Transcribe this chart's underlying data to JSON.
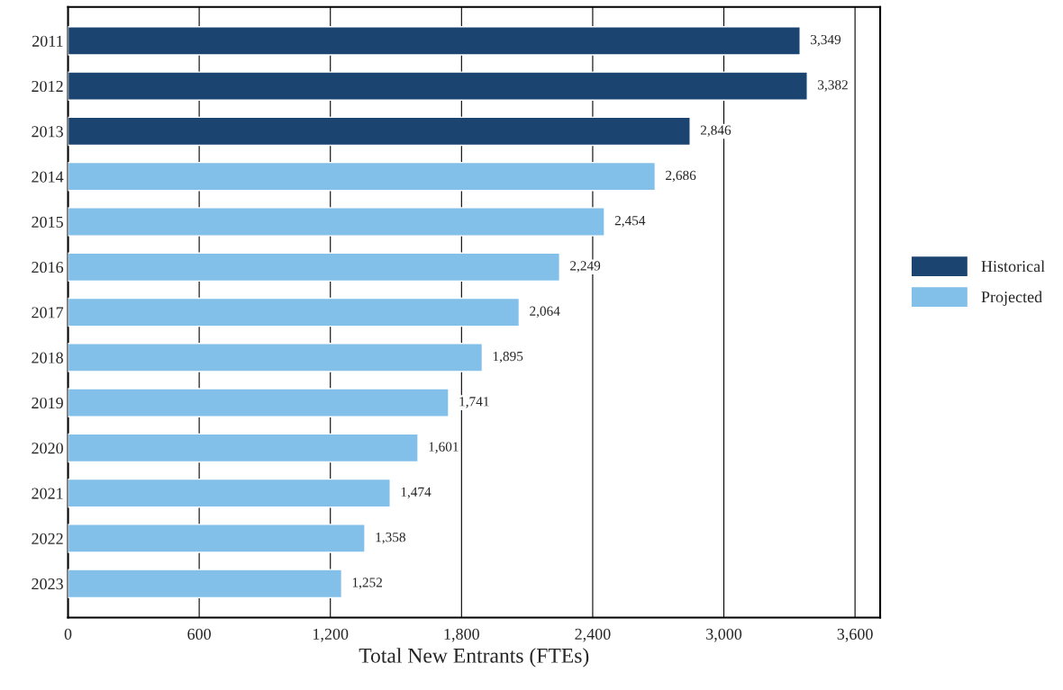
{
  "chart_data": {
    "type": "bar",
    "orientation": "horizontal",
    "xlabel": "Total New Entrants (FTEs)",
    "categories": [
      "2011",
      "2012",
      "2013",
      "2014",
      "2015",
      "2016",
      "2017",
      "2018",
      "2019",
      "2020",
      "2021",
      "2022",
      "2023"
    ],
    "series": [
      {
        "name": "Historical",
        "color": "#1b4570",
        "values": [
          3349,
          3382,
          2846,
          null,
          null,
          null,
          null,
          null,
          null,
          null,
          null,
          null,
          null
        ],
        "value_labels": [
          "3,349",
          "3,382",
          "2,846",
          null,
          null,
          null,
          null,
          null,
          null,
          null,
          null,
          null,
          null
        ]
      },
      {
        "name": "Projected",
        "color": "#82bfe9",
        "values": [
          null,
          null,
          null,
          2686,
          2454,
          2249,
          2064,
          1895,
          1741,
          1601,
          1474,
          1358,
          1252
        ],
        "value_labels": [
          null,
          null,
          null,
          "2,686",
          "2,454",
          "2,249",
          "2,064",
          "1,895",
          "1,741",
          "1,601",
          "1,474",
          "1,358",
          "1,252"
        ]
      }
    ],
    "xlim": [
      0,
      3715
    ],
    "xticks": [
      0,
      600,
      {
        "value": 1200,
        "label": "1,200"
      },
      {
        "value": 1800,
        "label": "1,800"
      },
      {
        "value": 2400,
        "label": "2,400"
      },
      {
        "value": 3000,
        "label": "3,000"
      },
      {
        "value": 3600,
        "label": "3,600"
      }
    ],
    "grid": "x",
    "legend": "right"
  }
}
